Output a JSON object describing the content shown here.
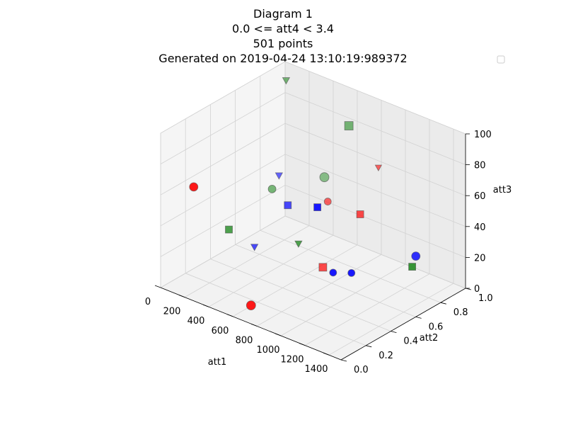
{
  "chart_data": {
    "type": "scatter",
    "title_lines": [
      "Diagram 1",
      "0.0 <= att4 < 3.4",
      "501 points",
      "Generated on 2019-04-24 13:10:19:989372"
    ],
    "axes": {
      "x": {
        "label": "att1",
        "range": [
          0,
          1500
        ],
        "ticks": [
          0,
          200,
          400,
          600,
          800,
          1000,
          1200,
          1400
        ]
      },
      "y": {
        "label": "att2",
        "range": [
          0,
          1
        ],
        "ticks": [
          0.0,
          0.2,
          0.4,
          0.6,
          0.8,
          1.0
        ]
      },
      "z": {
        "label": "att3",
        "range": [
          0,
          100
        ],
        "ticks": [
          0,
          20,
          40,
          60,
          80,
          100
        ]
      }
    },
    "grid": true,
    "legend": {
      "placement": "top-right",
      "entries": []
    },
    "series_colors": {
      "red": "#ff0000",
      "green": "#228b22",
      "blue": "#0000ff"
    },
    "marker_shapes": [
      "circle",
      "square",
      "triangle-down"
    ],
    "point_count": 501,
    "points": [
      {
        "x": 120,
        "y": 0.15,
        "z": 62,
        "c": "red",
        "m": "circle",
        "s": 1.2,
        "a": 0.9
      },
      {
        "x": 340,
        "y": 0.22,
        "z": 38,
        "c": "green",
        "m": "square",
        "s": 1.0,
        "a": 0.8
      },
      {
        "x": 560,
        "y": 0.41,
        "z": 71,
        "c": "blue",
        "m": "triangle-down",
        "s": 1.0,
        "a": 0.6
      },
      {
        "x": 780,
        "y": 0.55,
        "z": 12,
        "c": "red",
        "m": "square",
        "s": 1.1,
        "a": 0.7
      },
      {
        "x": 1020,
        "y": 0.33,
        "z": 88,
        "c": "green",
        "m": "circle",
        "s": 1.3,
        "a": 0.5
      },
      {
        "x": 1310,
        "y": 0.12,
        "z": 45,
        "c": "blue",
        "m": "circle",
        "s": 1.0,
        "a": 0.9
      },
      {
        "x": 250,
        "y": 0.78,
        "z": 25,
        "c": "blue",
        "m": "square",
        "s": 1.0,
        "a": 0.7
      },
      {
        "x": 900,
        "y": 0.88,
        "z": 65,
        "c": "red",
        "m": "triangle-down",
        "s": 0.9,
        "a": 0.6
      },
      {
        "x": 1450,
        "y": 0.62,
        "z": 30,
        "c": "green",
        "m": "square",
        "s": 1.0,
        "a": 0.9
      },
      {
        "x": 60,
        "y": 0.95,
        "z": 92,
        "c": "green",
        "m": "triangle-down",
        "s": 1.0,
        "a": 0.6
      },
      {
        "x": 700,
        "y": 0.05,
        "z": 8,
        "c": "red",
        "m": "circle",
        "s": 1.3,
        "a": 0.9
      },
      {
        "x": 1180,
        "y": 0.91,
        "z": 15,
        "c": "blue",
        "m": "circle",
        "s": 1.2,
        "a": 0.8
      },
      {
        "x": 430,
        "y": 0.48,
        "z": 55,
        "c": "green",
        "m": "circle",
        "s": 1.1,
        "a": 0.6
      },
      {
        "x": 610,
        "y": 0.67,
        "z": 40,
        "c": "blue",
        "m": "square",
        "s": 1.0,
        "a": 0.9
      },
      {
        "x": 1380,
        "y": 0.27,
        "z": 78,
        "c": "red",
        "m": "square",
        "s": 1.0,
        "a": 0.7
      },
      {
        "x": 180,
        "y": 0.58,
        "z": 5,
        "c": "blue",
        "m": "triangle-down",
        "s": 1.0,
        "a": 0.7
      },
      {
        "x": 960,
        "y": 0.18,
        "z": 50,
        "c": "green",
        "m": "triangle-down",
        "s": 1.0,
        "a": 0.8
      },
      {
        "x": 820,
        "y": 0.72,
        "z": 97,
        "c": "green",
        "m": "square",
        "s": 1.2,
        "a": 0.6
      },
      {
        "x": 520,
        "y": 0.84,
        "z": 33,
        "c": "red",
        "m": "circle",
        "s": 1.0,
        "a": 0.6
      },
      {
        "x": 1100,
        "y": 0.47,
        "z": 22,
        "c": "blue",
        "m": "circle",
        "s": 1.0,
        "a": 0.9
      }
    ]
  }
}
